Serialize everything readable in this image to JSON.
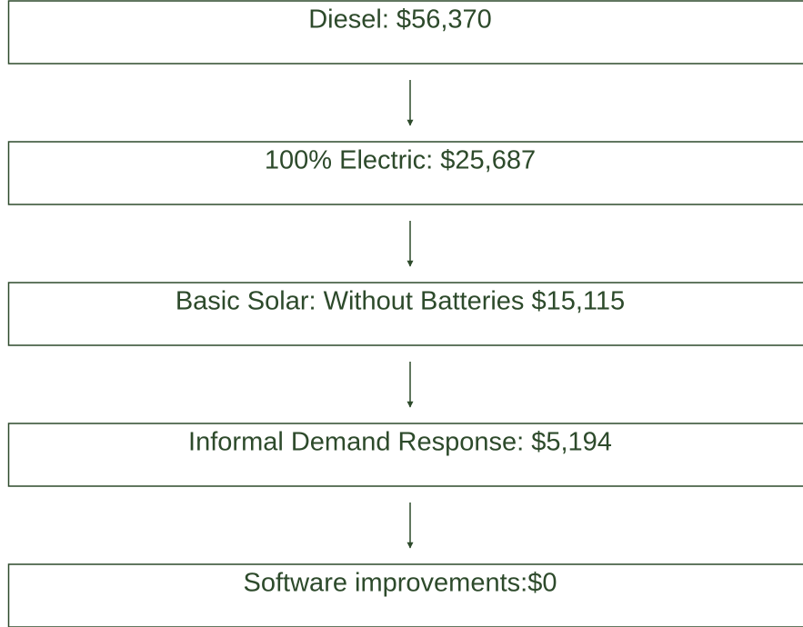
{
  "nodes": [
    {
      "label": "Diesel: $56,370"
    },
    {
      "label": "100% Electric: $25,687"
    },
    {
      "label": "Basic Solar: Without Batteries $15,115"
    },
    {
      "label": "Informal Demand Response: $5,194"
    },
    {
      "label": "Software improvements:$0"
    }
  ]
}
